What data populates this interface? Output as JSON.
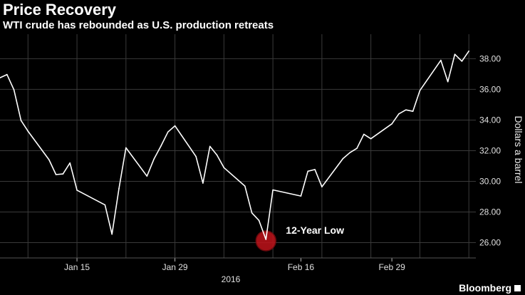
{
  "chart_data": {
    "type": "line",
    "title": "Price Recovery",
    "subtitle": "WTI crude has rebounded as U.S. production retreats",
    "ylabel": "Dollars a barrel",
    "year_label": "2016",
    "ylim": [
      25.0,
      39.6
    ],
    "yticks": [
      26,
      28,
      30,
      32,
      34,
      36,
      38
    ],
    "ytick_labels": [
      "26.00",
      "28.00",
      "30.00",
      "32.00",
      "34.00",
      "36.00",
      "38.00"
    ],
    "xlim": [
      "2016-01-04",
      "2016-03-12"
    ],
    "xticks": [
      "2016-01-15",
      "2016-01-29",
      "2016-02-16",
      "2016-02-29"
    ],
    "xtick_labels": [
      "Jan 15",
      "Jan 29",
      "Feb 16",
      "Feb 29"
    ],
    "grid": true,
    "line_color": "#ffffff",
    "series": [
      {
        "x": [
          "2016-01-04",
          "2016-01-05",
          "2016-01-06",
          "2016-01-07",
          "2016-01-08",
          "2016-01-11",
          "2016-01-12",
          "2016-01-13",
          "2016-01-14",
          "2016-01-15",
          "2016-01-19",
          "2016-01-20",
          "2016-01-21",
          "2016-01-22",
          "2016-01-25",
          "2016-01-26",
          "2016-01-27",
          "2016-01-28",
          "2016-01-29",
          "2016-02-01",
          "2016-02-02",
          "2016-02-03",
          "2016-02-04",
          "2016-02-05",
          "2016-02-08",
          "2016-02-09",
          "2016-02-10",
          "2016-02-11",
          "2016-02-12",
          "2016-02-16",
          "2016-02-17",
          "2016-02-18",
          "2016-02-19",
          "2016-02-22",
          "2016-02-23",
          "2016-02-24",
          "2016-02-25",
          "2016-02-26",
          "2016-02-29",
          "2016-03-01",
          "2016-03-02",
          "2016-03-03",
          "2016-03-04",
          "2016-03-07",
          "2016-03-08",
          "2016-03-09",
          "2016-03-10",
          "2016-03-11"
        ],
        "values": [
          36.76,
          36.97,
          35.97,
          33.97,
          33.27,
          31.41,
          30.44,
          30.48,
          31.2,
          29.42,
          28.46,
          26.55,
          29.53,
          32.19,
          30.34,
          31.45,
          32.3,
          33.22,
          33.62,
          31.62,
          29.88,
          32.28,
          31.72,
          30.89,
          29.69,
          27.94,
          27.45,
          26.21,
          29.44,
          29.04,
          30.66,
          30.77,
          29.64,
          31.48,
          31.87,
          32.15,
          33.07,
          32.78,
          33.75,
          34.4,
          34.66,
          34.57,
          35.92,
          37.9,
          36.5,
          38.29,
          37.84,
          38.5
        ]
      }
    ],
    "annotation": {
      "label": "12-Year Low",
      "x": "2016-02-11",
      "y": 26.21,
      "marker_color": "#c0131b"
    }
  },
  "brand": "Bloomberg"
}
